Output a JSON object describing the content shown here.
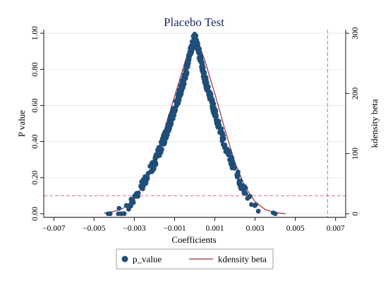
{
  "chart_data": {
    "type": "scatter",
    "title": "Placebo Test",
    "xlabel": "Coefficients",
    "ylabel": "P value",
    "y2label": "kdensity beta",
    "xlim": [
      -0.0075,
      0.0075
    ],
    "ylim": [
      -0.02,
      1.02
    ],
    "y2lim": [
      -6,
      306
    ],
    "x_ticks": [
      "−0.007",
      "−0.005",
      "−0.003",
      "−0.001",
      "0.001",
      "0.003",
      "0.005",
      "0.007"
    ],
    "x_tick_values": [
      -0.007,
      -0.005,
      -0.003,
      -0.001,
      0.001,
      0.003,
      0.005,
      0.007
    ],
    "y_ticks": [
      "0.00",
      "0.20",
      "0.40",
      "0.60",
      "0.80",
      "1.00"
    ],
    "y_tick_values": [
      0,
      0.2,
      0.4,
      0.6,
      0.8,
      1.0
    ],
    "y2_ticks": [
      "0",
      "100",
      "200",
      "300"
    ],
    "y2_tick_values": [
      0,
      100,
      200,
      300
    ],
    "reference_lines": {
      "horizontal_y": 0.1,
      "vertical_x": 0.0066,
      "color": "#e06a7a"
    },
    "grid": true,
    "legend_position": "bottom",
    "series": [
      {
        "name": "p_value",
        "color": "#1f4e79",
        "kind": "scatter",
        "envelope": {
          "x": [
            -0.0043,
            -0.0036,
            -0.003,
            -0.0025,
            -0.002,
            -0.0015,
            -0.001,
            -0.0005,
            -0.0002,
            0.0,
            0.0002,
            0.0005,
            0.001,
            0.0015,
            0.002,
            0.0025,
            0.003,
            0.0035,
            0.004
          ],
          "y": [
            0.0,
            0.02,
            0.08,
            0.18,
            0.28,
            0.42,
            0.58,
            0.75,
            0.9,
            0.99,
            0.9,
            0.75,
            0.56,
            0.38,
            0.24,
            0.12,
            0.04,
            0.01,
            0.0
          ]
        }
      },
      {
        "name": "kdensity beta",
        "color": "#9b2c33",
        "kind": "line",
        "axis": "y2",
        "x": [
          -0.0045,
          -0.004,
          -0.0035,
          -0.003,
          -0.0025,
          -0.002,
          -0.0015,
          -0.001,
          -0.0005,
          -0.0002,
          0.0,
          0.0002,
          0.0005,
          0.001,
          0.0015,
          0.002,
          0.0025,
          0.003,
          0.0035,
          0.004,
          0.0045
        ],
        "y": [
          1,
          4,
          10,
          25,
          50,
          88,
          140,
          195,
          250,
          283,
          290,
          283,
          255,
          200,
          140,
          85,
          45,
          20,
          7,
          2,
          0
        ]
      }
    ]
  }
}
